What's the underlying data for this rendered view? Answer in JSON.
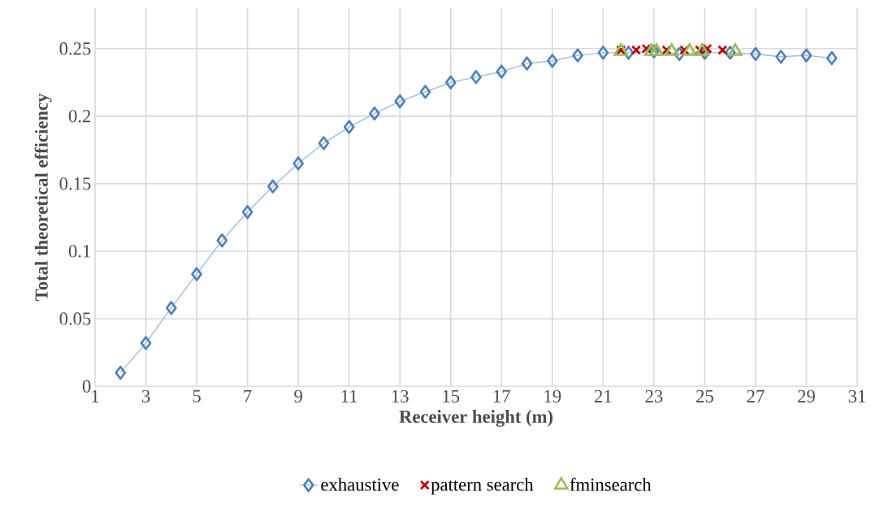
{
  "chart_data": {
    "type": "line",
    "xlabel": "Receiver height (m)",
    "ylabel": "Total theoretical efficiency",
    "xlim": [
      1,
      31
    ],
    "xticks": [
      1,
      3,
      5,
      7,
      9,
      11,
      13,
      15,
      17,
      19,
      21,
      23,
      25,
      27,
      29,
      31
    ],
    "ylim": [
      0,
      0.28
    ],
    "yticks": [
      0,
      0.05,
      0.1,
      0.15,
      0.2,
      0.25
    ],
    "grid": true,
    "legend": "bottom",
    "series": [
      {
        "name": "exhaustive",
        "marker": "diamond",
        "color": "#4f81bd",
        "x": [
          2,
          3,
          4,
          5,
          6,
          7,
          8,
          9,
          10,
          11,
          12,
          13,
          14,
          15,
          16,
          17,
          18,
          19,
          20,
          21,
          22,
          23,
          24,
          25,
          26,
          27,
          28,
          29,
          30
        ],
        "values": [
          0.01,
          0.032,
          0.058,
          0.083,
          0.108,
          0.129,
          0.148,
          0.165,
          0.18,
          0.192,
          0.202,
          0.211,
          0.218,
          0.225,
          0.229,
          0.233,
          0.239,
          0.241,
          0.245,
          0.247,
          0.247,
          0.248,
          0.246,
          0.247,
          0.247,
          0.246,
          0.244,
          0.245,
          0.243
        ]
      },
      {
        "name": "pattern search",
        "type": "scatter",
        "marker": "cross",
        "color": "#c00000",
        "x": [
          21.7,
          22.3,
          22.7,
          23.5,
          24.2,
          24.8,
          25.1,
          25.7
        ],
        "values": [
          0.249,
          0.249,
          0.25,
          0.249,
          0.249,
          0.249,
          0.25,
          0.249
        ]
      },
      {
        "name": "fminsearch",
        "type": "scatter",
        "marker": "triangle",
        "color": "#9bbb59",
        "x": [
          21.7,
          22.9,
          23.1,
          23.7,
          24.4,
          24.9,
          26.2
        ],
        "values": [
          0.248,
          0.248,
          0.248,
          0.248,
          0.248,
          0.248,
          0.248
        ]
      }
    ]
  }
}
